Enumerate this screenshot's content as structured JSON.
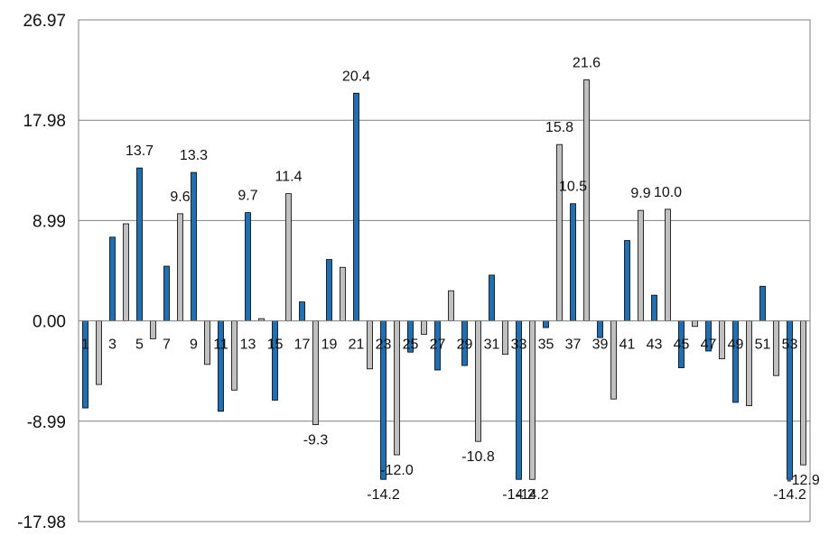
{
  "chart_data": {
    "type": "bar",
    "title": "",
    "xlabel": "",
    "ylabel": "",
    "ylim": [
      -17.98,
      26.97
    ],
    "y_ticks": [
      "26.97",
      "17.98",
      "8.99",
      "0.00",
      "-8.99",
      "-17.98"
    ],
    "y_tick_values": [
      26.97,
      17.98,
      8.99,
      0.0,
      -8.99,
      -17.98
    ],
    "x_tick_labels": [
      "1",
      "3",
      "5",
      "7",
      "9",
      "11",
      "13",
      "15",
      "17",
      "19",
      "21",
      "23",
      "25",
      "27",
      "29",
      "31",
      "33",
      "35",
      "37",
      "39",
      "41",
      "43",
      "45",
      "47",
      "49",
      "51",
      "53"
    ],
    "grid": "horizontal",
    "legend": "none",
    "colors": {
      "odd": "#1f6fb2",
      "even": "#c0c0c0",
      "grid": "#808080"
    },
    "categories": [
      1,
      2,
      3,
      4,
      5,
      6,
      7,
      8,
      9,
      10,
      11,
      12,
      13,
      14,
      15,
      16,
      17,
      18,
      19,
      20,
      21,
      22,
      23,
      24,
      25,
      26,
      27,
      28,
      29,
      30,
      31,
      32,
      33,
      34,
      35,
      36,
      37,
      38,
      39,
      40,
      41,
      42,
      43,
      44,
      45,
      46,
      47,
      48,
      49,
      50,
      51,
      52,
      53,
      54
    ],
    "values": [
      -7.8,
      -5.7,
      7.5,
      8.7,
      13.7,
      -1.6,
      4.9,
      9.6,
      13.3,
      -3.9,
      -8.1,
      -6.2,
      9.7,
      0.2,
      -7.1,
      11.4,
      1.7,
      -9.3,
      5.5,
      4.8,
      20.4,
      -4.3,
      -14.2,
      -12.0,
      -2.8,
      -1.2,
      -4.4,
      2.7,
      -4.0,
      -10.8,
      4.1,
      -3.0,
      -14.2,
      -14.2,
      -0.6,
      15.8,
      10.5,
      21.6,
      -1.5,
      -7.0,
      7.2,
      9.9,
      2.3,
      10.0,
      -4.2,
      -0.5,
      -2.7,
      -3.4,
      -7.3,
      -7.6,
      3.1,
      -4.9,
      -14.2,
      -12.9
    ],
    "data_labels": [
      {
        "index": 5,
        "text": "13.7"
      },
      {
        "index": 8,
        "text": "9.6"
      },
      {
        "index": 9,
        "text": "13.3"
      },
      {
        "index": 13,
        "text": "9.7"
      },
      {
        "index": 16,
        "text": "11.4"
      },
      {
        "index": 18,
        "text": "-9.3"
      },
      {
        "index": 21,
        "text": "20.4"
      },
      {
        "index": 23,
        "text": "-14.2"
      },
      {
        "index": 24,
        "text": "-12.0"
      },
      {
        "index": 30,
        "text": "-10.8"
      },
      {
        "index": 33,
        "text": "-14.2"
      },
      {
        "index": 34,
        "text": "-14.2"
      },
      {
        "index": 36,
        "text": "15.8"
      },
      {
        "index": 37,
        "text": "10.5"
      },
      {
        "index": 38,
        "text": "21.6"
      },
      {
        "index": 42,
        "text": "9.9"
      },
      {
        "index": 44,
        "text": "10.0"
      },
      {
        "index": 53,
        "text": "-14.2"
      },
      {
        "index": 54,
        "text": "-12.9"
      }
    ]
  }
}
